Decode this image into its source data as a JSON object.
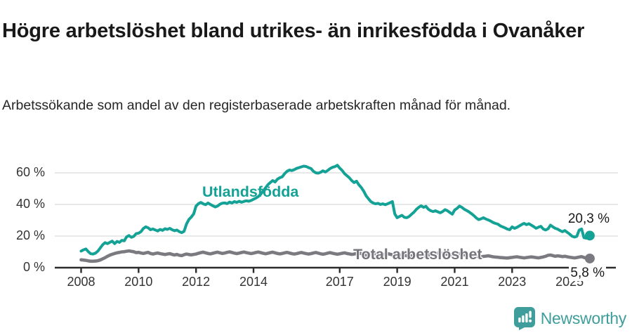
{
  "header": {
    "title": "Högre arbetslöshet bland utrikes- än inrikesfödda i Ovanåker",
    "subtitle": "Arbetssökande som andel av den registerbaserade arbetskraften månad för månad."
  },
  "chart_data": {
    "type": "line",
    "title": "Högre arbetslöshet bland utrikes- än inrikesfödda i Ovanåker",
    "x_start": "2008-01",
    "x_step_months": 1,
    "ylim": [
      0,
      70
    ],
    "grid": true,
    "axis_color": "#2b2b2b",
    "grid_color": "#dadada",
    "yticks": [
      {
        "value": 60,
        "label": "60 %"
      },
      {
        "value": 40,
        "label": "40 %"
      },
      {
        "value": 20,
        "label": "20 %"
      },
      {
        "value": 0,
        "label": "0 %"
      }
    ],
    "xticks": [
      {
        "year": 2008,
        "label": "2008"
      },
      {
        "year": 2010,
        "label": "2010"
      },
      {
        "year": 2012,
        "label": "2012"
      },
      {
        "year": 2014,
        "label": "2014"
      },
      {
        "year": 2017,
        "label": "2017"
      },
      {
        "year": 2019,
        "label": "2019"
      },
      {
        "year": 2021,
        "label": "2021"
      },
      {
        "year": 2023,
        "label": "2023"
      },
      {
        "year": 2025,
        "label": "2025"
      }
    ],
    "series": [
      {
        "name": "Utlandsfödda",
        "color": "#13a295",
        "end_label": "20,3 %",
        "end_value": 20.3,
        "values": [
          10.5,
          11.3,
          11.8,
          10.2,
          8.8,
          8.6,
          9.2,
          10.5,
          12.5,
          14.5,
          15.8,
          15.2,
          16.0,
          16.8,
          15.2,
          16.6,
          16.0,
          17.3,
          17.0,
          19.5,
          20.3,
          19.2,
          19.8,
          21.5,
          21.8,
          22.8,
          24.8,
          25.8,
          25.2,
          24.0,
          24.5,
          23.8,
          23.2,
          24.2,
          23.6,
          24.6,
          24.2,
          24.9,
          24.0,
          23.4,
          23.8,
          22.8,
          22.2,
          23.0,
          27.5,
          30.5,
          32.0,
          34.0,
          39.0,
          40.5,
          41.3,
          40.4,
          39.8,
          40.9,
          40.0,
          39.2,
          38.4,
          39.0,
          40.2,
          40.8,
          41.0,
          40.5,
          41.5,
          40.9,
          41.8,
          41.3,
          42.0,
          41.4,
          41.9,
          42.3,
          42.0,
          42.5,
          43.3,
          44.0,
          45.0,
          46.5,
          48.5,
          50.5,
          52.5,
          53.8,
          55.1,
          54.2,
          56.0,
          56.9,
          57.5,
          59.5,
          61.0,
          61.8,
          61.4,
          62.0,
          62.8,
          63.3,
          63.8,
          64.2,
          64.0,
          63.3,
          62.7,
          61.0,
          60.0,
          59.8,
          60.3,
          61.3,
          60.5,
          61.5,
          62.7,
          63.5,
          63.9,
          64.8,
          63.0,
          61.5,
          59.5,
          58.2,
          56.9,
          55.1,
          53.8,
          54.7,
          52.4,
          50.7,
          48.4,
          45.5,
          43.6,
          41.8,
          40.9,
          40.4,
          40.7,
          40.0,
          40.4,
          39.8,
          40.4,
          41.1,
          41.8,
          34.0,
          31.6,
          32.4,
          33.1,
          31.8,
          31.6,
          32.4,
          33.8,
          35.1,
          36.9,
          38.2,
          39.1,
          38.2,
          38.8,
          37.0,
          36.0,
          35.5,
          36.0,
          35.3,
          34.7,
          35.5,
          36.7,
          36.0,
          34.9,
          33.8,
          36.5,
          37.5,
          39.0,
          38.2,
          37.0,
          36.2,
          35.3,
          34.2,
          33.0,
          31.5,
          30.4,
          30.9,
          31.6,
          30.8,
          30.2,
          29.5,
          28.6,
          28.0,
          27.6,
          26.5,
          25.8,
          25.2,
          24.4,
          24.0,
          25.8,
          24.9,
          25.5,
          26.4,
          27.3,
          28.0,
          27.2,
          27.8,
          26.9,
          26.0,
          24.9,
          25.6,
          26.2,
          24.5,
          23.8,
          24.6,
          26.9,
          25.8,
          24.9,
          24.4,
          23.5,
          22.7,
          23.5,
          22.4,
          21.3,
          19.9,
          19.4,
          19.8,
          23.8,
          24.5,
          19.0,
          18.6,
          20.3
        ]
      },
      {
        "name": "Total arbetslöshet",
        "color": "#7b7a80",
        "end_label": "5,8 %",
        "end_value": 5.8,
        "values": [
          5.0,
          4.8,
          4.6,
          4.3,
          4.1,
          4.1,
          4.2,
          4.4,
          4.9,
          5.6,
          6.3,
          7.2,
          7.9,
          8.5,
          9.0,
          9.4,
          9.7,
          10.0,
          10.1,
          10.4,
          10.6,
          10.3,
          10.1,
          9.5,
          9.7,
          9.3,
          9.0,
          9.4,
          9.7,
          9.0,
          8.6,
          9.0,
          9.3,
          8.9,
          8.6,
          8.3,
          8.6,
          8.9,
          8.4,
          8.0,
          8.4,
          7.8,
          7.6,
          8.2,
          8.6,
          8.3,
          8.1,
          8.4,
          8.6,
          9.1,
          9.5,
          9.8,
          9.4,
          9.0,
          8.7,
          9.1,
          9.5,
          9.8,
          9.4,
          9.0,
          9.3,
          9.7,
          10.0,
          9.6,
          9.2,
          8.9,
          9.2,
          9.6,
          9.9,
          9.5,
          9.2,
          8.9,
          9.2,
          9.6,
          9.9,
          9.5,
          9.1,
          8.8,
          9.1,
          9.5,
          9.8,
          9.4,
          9.0,
          8.7,
          9.0,
          9.4,
          9.7,
          9.3,
          8.9,
          8.6,
          8.9,
          9.3,
          9.6,
          9.2,
          8.9,
          8.6,
          8.9,
          9.3,
          9.6,
          9.2,
          8.8,
          8.5,
          8.8,
          9.2,
          9.5,
          9.1,
          8.8,
          8.5,
          8.8,
          9.1,
          9.4,
          9.0,
          8.7,
          8.4,
          8.6,
          9.0,
          9.3,
          8.9,
          8.6,
          7.8,
          8.5,
          8.8,
          9.1,
          8.7,
          8.4,
          8.1,
          8.3,
          8.6,
          8.9,
          8.5,
          8.2,
          7.9,
          7.6,
          7.9,
          8.2,
          7.8,
          7.5,
          7.3,
          7.5,
          7.8,
          8.1,
          7.8,
          7.6,
          7.4,
          7.7,
          8.0,
          8.4,
          8.8,
          9.1,
          9.3,
          9.1,
          8.9,
          8.7,
          8.5,
          8.3,
          8.1,
          8.3,
          8.6,
          8.8,
          8.5,
          8.2,
          8.0,
          7.8,
          7.6,
          7.4,
          7.2,
          7.0,
          6.9,
          7.1,
          7.3,
          7.5,
          7.2,
          6.9,
          6.7,
          6.6,
          6.4,
          6.3,
          6.2,
          6.1,
          6.3,
          6.5,
          6.7,
          6.9,
          6.6,
          6.4,
          6.2,
          6.4,
          6.6,
          6.8,
          6.6,
          6.4,
          6.2,
          6.5,
          6.8,
          7.2,
          7.8,
          8.0,
          7.6,
          7.2,
          7.5,
          7.3,
          7.0,
          7.2,
          6.9,
          6.6,
          6.4,
          6.2,
          6.4,
          6.7,
          7.0,
          6.5,
          6.0,
          5.8
        ]
      }
    ]
  },
  "branding": {
    "logo_text": "Newsworthy",
    "logo_color": "#3f9e9c"
  }
}
